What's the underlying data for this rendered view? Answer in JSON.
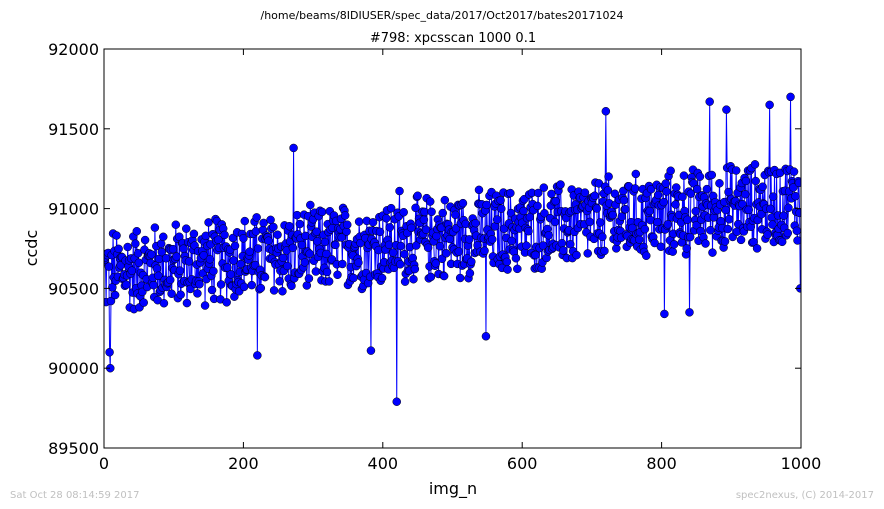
{
  "suptitle": "/home/beams/8IDIUSER/spec_data/2017/Oct2017/bates20171024",
  "footer_left": "Sat Oct 28 08:14:59 2017",
  "footer_right": "spec2nexus, (C) 2014-2017",
  "colors": {
    "series": "#0000ff",
    "axes": "#000000",
    "footer": "#c0c0c0"
  },
  "chart_data": {
    "type": "line",
    "markers": "circle",
    "title": "#798: xpcsscan 1000 0.1",
    "xlabel": "img_n",
    "ylabel": "ccdc",
    "xlim": [
      0,
      1000
    ],
    "ylim": [
      89500,
      92000
    ],
    "xticks": [
      0,
      200,
      400,
      600,
      800,
      1000
    ],
    "yticks": [
      89500,
      90000,
      90500,
      91000,
      91500,
      92000
    ],
    "xtick_labels": [
      "0",
      "200",
      "400",
      "600",
      "800",
      "1000"
    ],
    "ytick_labels": [
      "89500",
      "90000",
      "90500",
      "91000",
      "91500",
      "92000"
    ],
    "grid": false,
    "series": [
      {
        "trend_start": 90600,
        "trend_end": 91050,
        "spread": 300,
        "n_points": 1000,
        "highlighted_values": [
          {
            "x": 9,
            "y": 90000
          },
          {
            "x": 8,
            "y": 90100
          },
          {
            "x": 220,
            "y": 90080
          },
          {
            "x": 272,
            "y": 91380
          },
          {
            "x": 383,
            "y": 90110
          },
          {
            "x": 420,
            "y": 89790
          },
          {
            "x": 424,
            "y": 91110
          },
          {
            "x": 548,
            "y": 90200
          },
          {
            "x": 720,
            "y": 91610
          },
          {
            "x": 804,
            "y": 90340
          },
          {
            "x": 840,
            "y": 90350
          },
          {
            "x": 869,
            "y": 91670
          },
          {
            "x": 893,
            "y": 91620
          },
          {
            "x": 955,
            "y": 91650
          },
          {
            "x": 985,
            "y": 91700
          },
          {
            "x": 999,
            "y": 90500
          }
        ]
      }
    ]
  }
}
